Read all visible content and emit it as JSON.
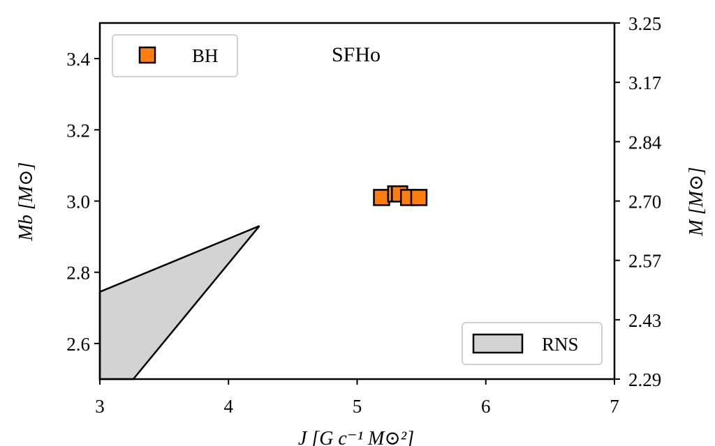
{
  "chart_data": {
    "type": "scatter",
    "title": "SFHo",
    "xlabel": "J [G c⁻¹ M⊙²]",
    "ylabel": "Mb [M⊙]",
    "y2label": "M [M⊙]",
    "series": [
      {
        "name": "BH",
        "color": "#ff7f0e",
        "x": [
          5.19,
          5.3,
          5.33,
          5.4,
          5.48
        ],
        "values": [
          3.01,
          3.02,
          3.02,
          3.01,
          3.01
        ]
      }
    ],
    "regions": [
      {
        "name": "RNS",
        "color": "#d3d3d3",
        "x": [
          3,
          4.24,
          3.26,
          3
        ],
        "y": [
          2.745,
          2.93,
          2.5,
          2.5
        ]
      }
    ],
    "xlim": [
      3,
      7
    ],
    "xticks": [
      3,
      4,
      5,
      6,
      7
    ],
    "ylim": [
      2.5,
      3.5
    ],
    "yticks": [
      2.6,
      2.8,
      {
        "value": 3,
        "label": "3.0"
      },
      3.2,
      3.4
    ],
    "y2lim": [
      2.29,
      3.25
    ],
    "y2ticks": [
      2.29,
      2.43,
      2.57,
      {
        "value": 2.7,
        "label": "2.70"
      },
      2.84,
      3.17,
      3.25
    ],
    "legend": [
      "upper left",
      "lower right"
    ],
    "grid": false
  }
}
